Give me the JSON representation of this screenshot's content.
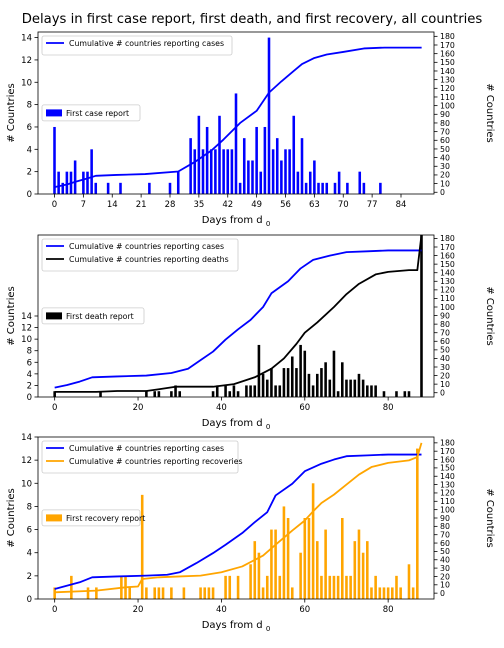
{
  "title": "Delays in first case report, first death, and first recovery, all countries",
  "colors": {
    "blue": "#0000ff",
    "black": "#000000",
    "orange": "#ffa500"
  },
  "chart_data": [
    {
      "type": "bar",
      "xlabel": "Days from d",
      "xlabel_sub": "0",
      "ylabel": "# Countries",
      "y2label": "# Countries",
      "xlim": [
        -4,
        92
      ],
      "ylim": [
        0,
        14.5
      ],
      "y2lim": [
        -2,
        185
      ],
      "xticks": [
        0,
        7,
        14,
        21,
        28,
        35,
        42,
        49,
        56,
        63,
        70,
        77,
        84
      ],
      "yticks": [
        0,
        2,
        4,
        6,
        8,
        10,
        12,
        14
      ],
      "y2ticks": [
        0,
        10,
        20,
        30,
        40,
        50,
        60,
        70,
        80,
        90,
        100,
        110,
        120,
        130,
        140,
        150,
        160,
        170,
        180
      ],
      "legend_top": [
        "Cumulative # countries reporting cases"
      ],
      "legend_bars": "First case report",
      "bar_color": "blue",
      "bars": [
        [
          0,
          6
        ],
        [
          1,
          2
        ],
        [
          2,
          1
        ],
        [
          3,
          2
        ],
        [
          4,
          2
        ],
        [
          5,
          3
        ],
        [
          7,
          2
        ],
        [
          8,
          2
        ],
        [
          9,
          4
        ],
        [
          10,
          1
        ],
        [
          13,
          1
        ],
        [
          16,
          1
        ],
        [
          23,
          1
        ],
        [
          28,
          1
        ],
        [
          30,
          2
        ],
        [
          33,
          5
        ],
        [
          34,
          4
        ],
        [
          35,
          7
        ],
        [
          36,
          4
        ],
        [
          37,
          6
        ],
        [
          38,
          4
        ],
        [
          39,
          4
        ],
        [
          40,
          7
        ],
        [
          41,
          4
        ],
        [
          42,
          4
        ],
        [
          43,
          4
        ],
        [
          44,
          9
        ],
        [
          45,
          1
        ],
        [
          46,
          5
        ],
        [
          47,
          3
        ],
        [
          48,
          3
        ],
        [
          49,
          6
        ],
        [
          50,
          2
        ],
        [
          51,
          6
        ],
        [
          52,
          14
        ],
        [
          53,
          4
        ],
        [
          54,
          5
        ],
        [
          55,
          3
        ],
        [
          56,
          4
        ],
        [
          57,
          4
        ],
        [
          58,
          7
        ],
        [
          59,
          2
        ],
        [
          60,
          5
        ],
        [
          61,
          1
        ],
        [
          62,
          2
        ],
        [
          63,
          3
        ],
        [
          64,
          1
        ],
        [
          65,
          1
        ],
        [
          66,
          1
        ],
        [
          68,
          1
        ],
        [
          69,
          2
        ],
        [
          71,
          1
        ],
        [
          74,
          2
        ],
        [
          75,
          1
        ],
        [
          79,
          1
        ]
      ],
      "lines": [
        {
          "name": "Cumulative # countries reporting cases",
          "color": "blue",
          "points": [
            [
              0,
              6
            ],
            [
              3,
              9
            ],
            [
              5,
              12
            ],
            [
              8,
              16
            ],
            [
              10,
              19
            ],
            [
              15,
              20
            ],
            [
              22,
              21
            ],
            [
              30,
              24
            ],
            [
              34,
              35
            ],
            [
              38,
              48
            ],
            [
              41,
              61
            ],
            [
              45,
              80
            ],
            [
              49,
              94
            ],
            [
              52,
              115
            ],
            [
              55,
              128
            ],
            [
              58,
              140
            ],
            [
              60,
              148
            ],
            [
              63,
              155
            ],
            [
              66,
              159
            ],
            [
              70,
              162
            ],
            [
              75,
              166
            ],
            [
              80,
              167
            ],
            [
              89,
              167
            ]
          ]
        }
      ]
    },
    {
      "type": "bar",
      "xlabel": "Days from d",
      "xlabel_sub": "0",
      "ylabel": "# Countries",
      "y2label": "# Countries",
      "xlim": [
        -4,
        91
      ],
      "ylim": [
        0,
        28
      ],
      "y2lim": [
        -5,
        184
      ],
      "xticks": [
        0,
        20,
        40,
        60,
        80
      ],
      "yticks": [
        0,
        2,
        4,
        6,
        8,
        10,
        12,
        14
      ],
      "y2ticks": [
        0,
        10,
        20,
        30,
        40,
        50,
        60,
        70,
        80,
        90,
        100,
        110,
        120,
        130,
        140,
        150,
        160,
        170,
        180
      ],
      "legend_top": [
        "Cumulative # countries reporting cases",
        "Cumulative # countries reporting deaths"
      ],
      "legend_bars": "First death report",
      "bar_color": "black",
      "bars": [
        [
          0,
          1
        ],
        [
          11,
          1
        ],
        [
          22,
          1
        ],
        [
          24,
          1
        ],
        [
          25,
          1
        ],
        [
          28,
          1
        ],
        [
          29,
          2
        ],
        [
          30,
          1
        ],
        [
          38,
          1
        ],
        [
          39,
          2
        ],
        [
          41,
          2
        ],
        [
          42,
          1
        ],
        [
          43,
          2
        ],
        [
          44,
          1
        ],
        [
          46,
          2
        ],
        [
          47,
          2
        ],
        [
          48,
          2
        ],
        [
          49,
          9
        ],
        [
          50,
          4
        ],
        [
          51,
          3
        ],
        [
          52,
          5
        ],
        [
          53,
          2
        ],
        [
          54,
          2
        ],
        [
          55,
          5
        ],
        [
          56,
          5
        ],
        [
          57,
          7
        ],
        [
          58,
          5
        ],
        [
          59,
          9
        ],
        [
          60,
          8
        ],
        [
          61,
          4
        ],
        [
          62,
          2
        ],
        [
          63,
          4
        ],
        [
          64,
          5
        ],
        [
          65,
          6
        ],
        [
          66,
          3
        ],
        [
          67,
          8
        ],
        [
          68,
          1
        ],
        [
          69,
          6
        ],
        [
          70,
          3
        ],
        [
          71,
          3
        ],
        [
          72,
          3
        ],
        [
          73,
          4
        ],
        [
          74,
          3
        ],
        [
          75,
          2
        ],
        [
          76,
          2
        ],
        [
          77,
          2
        ],
        [
          79,
          1
        ],
        [
          82,
          1
        ],
        [
          84,
          1
        ],
        [
          85,
          1
        ],
        [
          88,
          28
        ]
      ],
      "lines": [
        {
          "name": "Cumulative # countries reporting cases",
          "color": "blue",
          "points": [
            [
              0,
              6
            ],
            [
              3,
              9
            ],
            [
              6,
              13
            ],
            [
              9,
              18
            ],
            [
              15,
              19
            ],
            [
              22,
              20
            ],
            [
              28,
              23
            ],
            [
              32,
              28
            ],
            [
              35,
              38
            ],
            [
              38,
              48
            ],
            [
              41,
              62
            ],
            [
              44,
              74
            ],
            [
              47,
              85
            ],
            [
              50,
              100
            ],
            [
              52,
              116
            ],
            [
              56,
              130
            ],
            [
              59,
              145
            ],
            [
              62,
              155
            ],
            [
              66,
              160
            ],
            [
              70,
              164
            ],
            [
              75,
              165
            ],
            [
              80,
              166
            ],
            [
              88,
              166
            ]
          ]
        },
        {
          "name": "Cumulative # countries reporting deaths",
          "color": "black",
          "points": [
            [
              0,
              1
            ],
            [
              10,
              1
            ],
            [
              15,
              2
            ],
            [
              22,
              2
            ],
            [
              25,
              4
            ],
            [
              29,
              7
            ],
            [
              38,
              7
            ],
            [
              43,
              10
            ],
            [
              48,
              18
            ],
            [
              52,
              28
            ],
            [
              55,
              40
            ],
            [
              58,
              57
            ],
            [
              60,
              70
            ],
            [
              63,
              82
            ],
            [
              67,
              100
            ],
            [
              70,
              115
            ],
            [
              73,
              127
            ],
            [
              77,
              138
            ],
            [
              80,
              141
            ],
            [
              85,
              143
            ],
            [
              87,
              143
            ],
            [
              88,
              184
            ]
          ]
        }
      ]
    },
    {
      "type": "bar",
      "xlabel": "Days from d",
      "xlabel_sub": "0",
      "ylabel": "# Countries",
      "y2label": "# Countries",
      "xlim": [
        -4,
        91
      ],
      "ylim": [
        0,
        14
      ],
      "y2lim": [
        -7,
        187
      ],
      "xticks": [
        0,
        20,
        40,
        60,
        80
      ],
      "yticks": [
        0,
        2,
        4,
        6,
        8,
        10,
        12,
        14
      ],
      "y2ticks": [
        0,
        10,
        20,
        30,
        40,
        50,
        60,
        70,
        80,
        90,
        100,
        110,
        120,
        130,
        140,
        150,
        160,
        170,
        180
      ],
      "legend_top": [
        "Cumulative # countries reporting cases",
        "Cumulative # countries reporting recoveries"
      ],
      "legend_bars": "First recovery report",
      "bar_color": "orange",
      "bars": [
        [
          0,
          1
        ],
        [
          4,
          2
        ],
        [
          8,
          1
        ],
        [
          10,
          1
        ],
        [
          16,
          2
        ],
        [
          17,
          2
        ],
        [
          18,
          1
        ],
        [
          21,
          9
        ],
        [
          22,
          1
        ],
        [
          24,
          1
        ],
        [
          25,
          1
        ],
        [
          26,
          1
        ],
        [
          28,
          1
        ],
        [
          31,
          1
        ],
        [
          35,
          1
        ],
        [
          36,
          1
        ],
        [
          37,
          1
        ],
        [
          38,
          1
        ],
        [
          41,
          2
        ],
        [
          42,
          2
        ],
        [
          44,
          2
        ],
        [
          47,
          3
        ],
        [
          48,
          5
        ],
        [
          49,
          4
        ],
        [
          50,
          1
        ],
        [
          51,
          2
        ],
        [
          52,
          6
        ],
        [
          53,
          6
        ],
        [
          54,
          2
        ],
        [
          55,
          8
        ],
        [
          56,
          7
        ],
        [
          57,
          1
        ],
        [
          59,
          4
        ],
        [
          60,
          7
        ],
        [
          61,
          7
        ],
        [
          62,
          10
        ],
        [
          63,
          5
        ],
        [
          64,
          2
        ],
        [
          65,
          6
        ],
        [
          66,
          2
        ],
        [
          67,
          2
        ],
        [
          68,
          2
        ],
        [
          69,
          7
        ],
        [
          70,
          2
        ],
        [
          71,
          2
        ],
        [
          72,
          5
        ],
        [
          73,
          6
        ],
        [
          74,
          4
        ],
        [
          75,
          5
        ],
        [
          76,
          1
        ],
        [
          77,
          2
        ],
        [
          78,
          1
        ],
        [
          79,
          1
        ],
        [
          80,
          1
        ],
        [
          81,
          1
        ],
        [
          82,
          2
        ],
        [
          83,
          1
        ],
        [
          85,
          3
        ],
        [
          86,
          1
        ],
        [
          87,
          13
        ]
      ],
      "lines": [
        {
          "name": "Cumulative # countries reporting cases",
          "color": "blue",
          "points": [
            [
              0,
              5
            ],
            [
              3,
              9
            ],
            [
              6,
              13
            ],
            [
              9,
              19
            ],
            [
              15,
              20
            ],
            [
              22,
              21
            ],
            [
              27,
              22
            ],
            [
              30,
              25
            ],
            [
              34,
              36
            ],
            [
              38,
              48
            ],
            [
              41,
              58
            ],
            [
              45,
              72
            ],
            [
              48,
              85
            ],
            [
              51,
              97
            ],
            [
              53,
              117
            ],
            [
              57,
              131
            ],
            [
              60,
              146
            ],
            [
              64,
              155
            ],
            [
              67,
              160
            ],
            [
              70,
              164
            ],
            [
              75,
              165
            ],
            [
              80,
              166
            ],
            [
              88,
              166
            ]
          ]
        },
        {
          "name": "Cumulative # countries reporting recoveries",
          "color": "orange",
          "points": [
            [
              0,
              1
            ],
            [
              10,
              3
            ],
            [
              17,
              7
            ],
            [
              20,
              8
            ],
            [
              21,
              17
            ],
            [
              25,
              19
            ],
            [
              30,
              20
            ],
            [
              35,
              21
            ],
            [
              40,
              25
            ],
            [
              45,
              32
            ],
            [
              50,
              45
            ],
            [
              53,
              58
            ],
            [
              57,
              75
            ],
            [
              60,
              87
            ],
            [
              62,
              98
            ],
            [
              64,
              108
            ],
            [
              67,
              118
            ],
            [
              70,
              130
            ],
            [
              73,
              142
            ],
            [
              76,
              151
            ],
            [
              80,
              156
            ],
            [
              85,
              159
            ],
            [
              87,
              163
            ],
            [
              88,
              180
            ]
          ]
        }
      ]
    }
  ]
}
